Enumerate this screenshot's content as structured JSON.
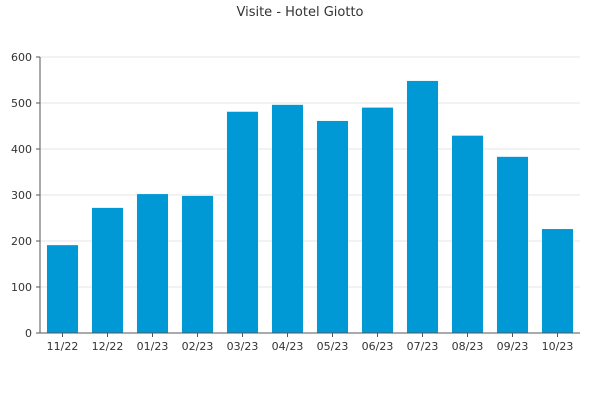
{
  "chart_data": {
    "type": "bar",
    "title": "Visite - Hotel Giotto",
    "xlabel": "",
    "ylabel": "",
    "categories": [
      "11/22",
      "12/22",
      "01/23",
      "02/23",
      "03/23",
      "04/23",
      "05/23",
      "06/23",
      "07/23",
      "08/23",
      "09/23",
      "10/23"
    ],
    "values": [
      191,
      272,
      302,
      298,
      481,
      496,
      461,
      490,
      548,
      429,
      383,
      226
    ],
    "ylim": [
      0,
      600
    ],
    "yticks": [
      0,
      100,
      200,
      300,
      400,
      500,
      600
    ],
    "grid": true,
    "legend": "none",
    "bar_color": "#0099d6"
  }
}
